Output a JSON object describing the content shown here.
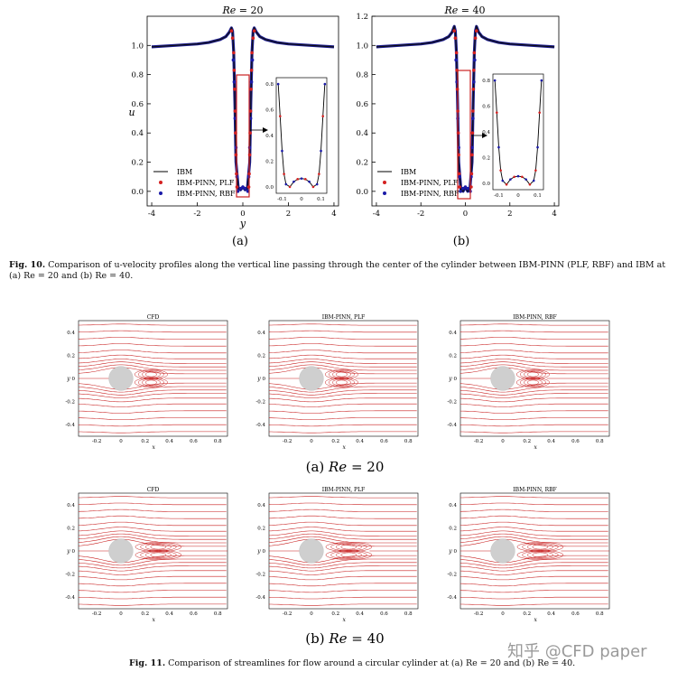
{
  "chart_data": [
    {
      "type": "line",
      "title": "Re = 20",
      "title_prefix": "Re",
      "title_value": "= 20",
      "xlabel": "y",
      "ylabel": "u",
      "xlim": [
        -4.2,
        4.2
      ],
      "ylim": [
        -0.1,
        1.2
      ],
      "xticks": [
        -4,
        -2,
        0,
        2,
        4
      ],
      "yticks": [
        0.0,
        0.2,
        0.4,
        0.6,
        0.8,
        1.0
      ],
      "ytick_labels": [
        "0.0",
        "0.2",
        "0.4",
        "0.6",
        "0.8",
        "1.0"
      ],
      "legend": [
        "IBM",
        "IBM-PINN, PLF",
        "IBM-PINN, RBF"
      ],
      "legend_position": "lower-left",
      "series": [
        {
          "name": "IBM",
          "style": "line",
          "x": [
            -4,
            -3,
            -2,
            -1.5,
            -1,
            -0.75,
            -0.6,
            -0.5,
            -0.45,
            -0.4,
            -0.35,
            -0.3,
            -0.2,
            -0.1,
            0,
            0.1,
            0.2,
            0.3,
            0.35,
            0.4,
            0.45,
            0.5,
            0.6,
            0.75,
            1,
            1.5,
            2,
            3,
            4
          ],
          "y": [
            0.99,
            1.0,
            1.01,
            1.02,
            1.04,
            1.06,
            1.09,
            1.12,
            1.1,
            0.95,
            0.6,
            0.2,
            0.02,
            0.01,
            0.03,
            0.01,
            0.02,
            0.2,
            0.6,
            0.95,
            1.1,
            1.12,
            1.09,
            1.06,
            1.04,
            1.02,
            1.01,
            1.0,
            0.99
          ]
        },
        {
          "name": "IBM-PINN, PLF",
          "style": "markers",
          "x": [
            -0.5,
            -0.45,
            -0.4,
            -0.38,
            -0.36,
            -0.34,
            -0.32,
            -0.3,
            -0.28,
            -0.26,
            0.26,
            0.28,
            0.3,
            0.32,
            0.34,
            0.36,
            0.38,
            0.4,
            0.45,
            0.5
          ],
          "y": [
            1.1,
            1.05,
            0.95,
            0.83,
            0.7,
            0.55,
            0.4,
            0.25,
            0.12,
            0.03,
            0.03,
            0.12,
            0.25,
            0.4,
            0.55,
            0.7,
            0.83,
            0.95,
            1.05,
            1.1
          ]
        },
        {
          "name": "IBM-PINN, RBF",
          "style": "markers",
          "x": [
            -0.42,
            -0.38,
            -0.34,
            -0.3,
            -0.26,
            -0.22,
            -0.1,
            0,
            0.1,
            0.22,
            0.26,
            0.3,
            0.34,
            0.38,
            0.42
          ],
          "y": [
            0.9,
            0.75,
            0.5,
            0.3,
            0.1,
            0.0,
            0.02,
            0.03,
            0.02,
            0.0,
            0.1,
            0.3,
            0.5,
            0.75,
            0.9
          ]
        }
      ],
      "inset": {
        "xlim": [
          -0.13,
          0.13
        ],
        "ylim": [
          -0.05,
          0.85
        ],
        "xticks": [
          -0.1,
          0,
          0.1
        ],
        "xtick_labels": [
          "-0.1",
          "0",
          "0.1"
        ],
        "yticks": [
          0.0,
          0.2,
          0.4,
          0.6,
          0.8
        ],
        "ytick_labels": [
          "0.0",
          "0.2",
          "0.4",
          "0.6",
          "0.8"
        ],
        "x": [
          -0.12,
          -0.11,
          -0.1,
          -0.09,
          -0.08,
          -0.06,
          -0.04,
          -0.02,
          0,
          0.02,
          0.04,
          0.06,
          0.08,
          0.09,
          0.1,
          0.11,
          0.12
        ],
        "y": [
          0.8,
          0.55,
          0.28,
          0.1,
          0.02,
          0.0,
          0.04,
          0.06,
          0.065,
          0.06,
          0.04,
          0.0,
          0.02,
          0.1,
          0.28,
          0.55,
          0.8
        ]
      },
      "sublabel": "(a)"
    },
    {
      "type": "line",
      "title": "Re = 40",
      "title_prefix": "Re",
      "title_value": "= 40",
      "xlabel": "",
      "ylabel": "",
      "xlim": [
        -4.2,
        4.2
      ],
      "ylim": [
        -0.1,
        1.2
      ],
      "xticks": [
        -4,
        -2,
        0,
        2,
        4
      ],
      "yticks": [
        0.0,
        0.2,
        0.4,
        0.6,
        0.8,
        1.0,
        1.2
      ],
      "ytick_labels": [
        "0.0",
        "0.2",
        "0.4",
        "0.6",
        "0.8",
        "1.0",
        "1.2"
      ],
      "legend": [
        "IBM",
        "IBM-PINN, PLF",
        "IBM-PINN, RBF"
      ],
      "legend_position": "lower-left",
      "series": [
        {
          "name": "IBM",
          "style": "line",
          "x": [
            -4,
            -3,
            -2,
            -1.5,
            -1,
            -0.75,
            -0.6,
            -0.5,
            -0.45,
            -0.4,
            -0.35,
            -0.3,
            -0.2,
            -0.1,
            0,
            0.1,
            0.2,
            0.3,
            0.35,
            0.4,
            0.45,
            0.5,
            0.6,
            0.75,
            1,
            1.5,
            2,
            3,
            4
          ],
          "y": [
            0.99,
            1.0,
            1.01,
            1.02,
            1.04,
            1.06,
            1.09,
            1.13,
            1.1,
            0.95,
            0.6,
            0.2,
            0.01,
            0.0,
            0.03,
            0.0,
            0.01,
            0.2,
            0.6,
            0.95,
            1.1,
            1.13,
            1.09,
            1.06,
            1.04,
            1.02,
            1.01,
            1.0,
            0.99
          ]
        },
        {
          "name": "IBM-PINN, PLF",
          "style": "markers",
          "x": [
            -0.5,
            -0.45,
            -0.4,
            -0.38,
            -0.36,
            -0.34,
            -0.32,
            -0.3,
            -0.28,
            -0.26,
            0.26,
            0.28,
            0.3,
            0.32,
            0.34,
            0.36,
            0.38,
            0.4,
            0.45,
            0.5
          ],
          "y": [
            1.1,
            1.05,
            0.95,
            0.83,
            0.7,
            0.55,
            0.4,
            0.25,
            0.12,
            0.03,
            0.03,
            0.12,
            0.25,
            0.4,
            0.55,
            0.7,
            0.83,
            0.95,
            1.05,
            1.1
          ]
        },
        {
          "name": "IBM-PINN, RBF",
          "style": "markers",
          "x": [
            -0.42,
            -0.38,
            -0.34,
            -0.3,
            -0.26,
            -0.22,
            -0.1,
            0,
            0.1,
            0.22,
            0.26,
            0.3,
            0.34,
            0.38,
            0.42
          ],
          "y": [
            0.9,
            0.75,
            0.5,
            0.3,
            0.1,
            0.0,
            0.02,
            0.03,
            0.02,
            0.0,
            0.1,
            0.3,
            0.5,
            0.75,
            0.9
          ]
        }
      ],
      "inset": {
        "xlim": [
          -0.13,
          0.13
        ],
        "ylim": [
          -0.05,
          0.85
        ],
        "xticks": [
          -0.1,
          0,
          0.1
        ],
        "xtick_labels": [
          "-0.1",
          "0",
          "0.1"
        ],
        "yticks": [
          0.0,
          0.2,
          0.4,
          0.6,
          0.8
        ],
        "ytick_labels": [
          "0.0",
          "0.2",
          "0.4",
          "0.6",
          "0.8"
        ],
        "x": [
          -0.12,
          -0.11,
          -0.1,
          -0.09,
          -0.08,
          -0.06,
          -0.04,
          -0.02,
          0,
          0.02,
          0.04,
          0.06,
          0.08,
          0.09,
          0.1,
          0.11,
          0.12
        ],
        "y": [
          0.8,
          0.55,
          0.28,
          0.1,
          0.02,
          -0.01,
          0.03,
          0.05,
          0.055,
          0.05,
          0.03,
          -0.01,
          0.02,
          0.1,
          0.28,
          0.55,
          0.8
        ]
      },
      "sublabel": "(b)"
    }
  ],
  "streamline_panels": {
    "titles": [
      "CFD",
      "IBM-PINN, PLF",
      "IBM-PINN, RBF"
    ],
    "xticks": [
      "-0.2",
      "0",
      "0.2",
      "0.4",
      "0.6",
      "0.8"
    ],
    "yticks": [
      "0.4",
      "0.2",
      "0",
      "-0.2",
      "-0.4"
    ],
    "xlabel": "x",
    "ylabel": "y",
    "rows": [
      {
        "case": "Re = 20",
        "sublabel_prefix": "(a) ",
        "sublabel_re": "Re",
        "sublabel_value": " = 20",
        "wake": 0.55
      },
      {
        "case": "Re = 40",
        "sublabel_prefix": "(b) ",
        "sublabel_re": "Re",
        "sublabel_value": " = 40",
        "wake": 1.0
      }
    ]
  },
  "captions": {
    "fig10_label": "Fig. 10.",
    "fig10_text": " Comparison of u-velocity profiles along the vertical line passing through the center of the cylinder between IBM-PINN (PLF, RBF) and IBM at (a) Re = 20 and (b) Re = 40.",
    "fig11_label": "Fig. 11.",
    "fig11_text": " Comparison of streamlines for flow around a circular cylinder at (a) Re = 20 and (b) Re = 40."
  },
  "watermark": "知乎 @CFD paper",
  "colors": {
    "line": "#111111",
    "plf": "#d42020",
    "rbf": "#1a1aa8",
    "highlight_box": "#cc2222",
    "streamline": "#c81e1e",
    "cylinder": "#cfcfcf"
  }
}
